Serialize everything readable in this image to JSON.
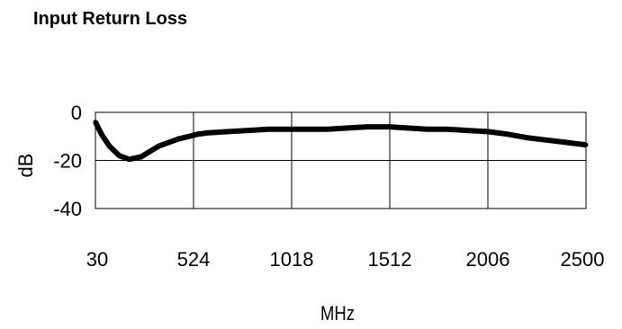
{
  "chart_data": {
    "type": "line",
    "title": "Input Return Loss",
    "xlabel": "MHz",
    "ylabel": "dB",
    "xlim": [
      30,
      2500
    ],
    "ylim": [
      -40,
      0
    ],
    "xticks": [
      30,
      524,
      1018,
      1512,
      2006,
      2500
    ],
    "yticks": [
      0,
      -20,
      -40
    ],
    "grid": true,
    "series": [
      {
        "color": "#000000",
        "x": [
          30,
          60,
          100,
          150,
          200,
          260,
          300,
          350,
          400,
          450,
          500,
          550,
          600,
          700,
          800,
          900,
          1000,
          1100,
          1200,
          1300,
          1400,
          1512,
          1600,
          1700,
          1800,
          1900,
          2006,
          2100,
          2200,
          2300,
          2400,
          2450,
          2500
        ],
        "y": [
          -4,
          -9,
          -14,
          -18,
          -19.5,
          -18.5,
          -16.5,
          -14,
          -12.5,
          -11,
          -10,
          -9,
          -8.5,
          -8,
          -7.5,
          -7,
          -7,
          -7,
          -7,
          -6.5,
          -6,
          -6,
          -6.5,
          -7,
          -7,
          -7.5,
          -8,
          -9,
          -10.5,
          -11.5,
          -12.5,
          -13,
          -13.5
        ]
      }
    ]
  }
}
